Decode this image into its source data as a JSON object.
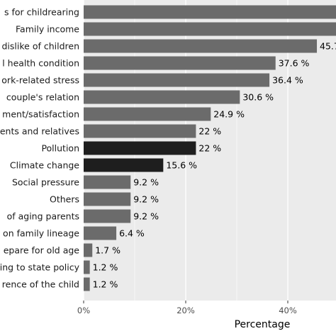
{
  "chart_data": {
    "type": "bar",
    "orientation": "horizontal",
    "categories": [
      "s for childrearing",
      "Family income",
      "dislike of children",
      "l health condition",
      "ork-related stress",
      "couple's relation",
      "ment/satisfaction",
      "ents and relatives",
      "Pollution",
      "Climate change",
      "Social pressure",
      "Others",
      "of aging parents",
      "on family lineage",
      "epare for old age",
      "ing to state policy",
      "rence of the child"
    ],
    "values": [
      52,
      50,
      45.7,
      37.6,
      36.4,
      30.6,
      24.9,
      22,
      22,
      15.6,
      9.2,
      9.2,
      9.2,
      6.4,
      1.7,
      1.2,
      1.2
    ],
    "value_labels": [
      "",
      "",
      "45.7",
      "37.6 %",
      "36.4 %",
      "30.6 %",
      "24.9 %",
      "22 %",
      "22 %",
      "15.6 %",
      "9.2 %",
      "9.2 %",
      "9.2 %",
      "6.4 %",
      "1.7 %",
      "1.2 %",
      "1.2 %"
    ],
    "highlighted": [
      "Pollution",
      "Climate change"
    ],
    "xlabel": "Percentage",
    "xticks": [
      "0%",
      "20%",
      "40%"
    ],
    "xtick_values": [
      0,
      20,
      40
    ],
    "xlim": [
      0,
      52
    ],
    "grid": true,
    "colors": {
      "bar": "#6b6b6b",
      "highlight": "#1e1e1e",
      "panel": "#ebebeb",
      "grid": "#ffffff"
    }
  }
}
